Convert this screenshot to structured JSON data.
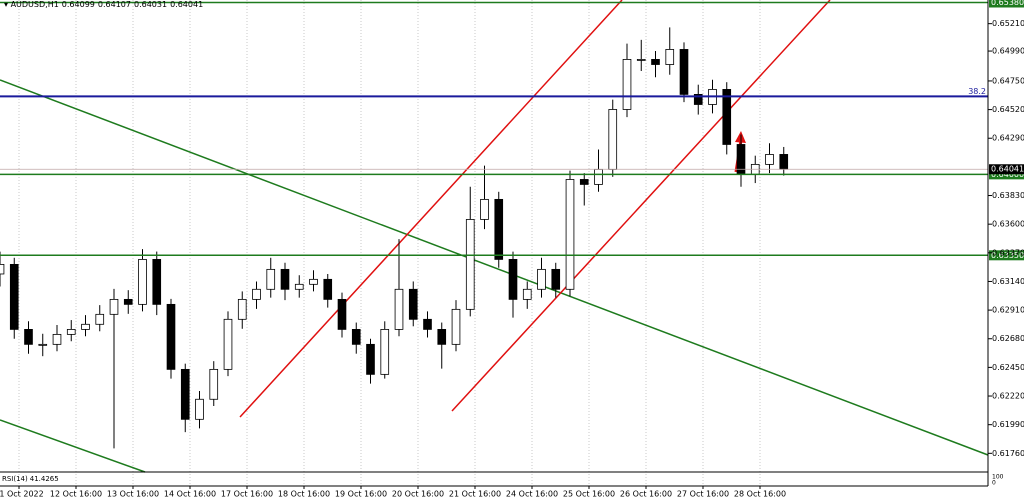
{
  "chart_data": {
    "type": "candlestick",
    "title": "AUDUSD,H1",
    "header_values": [
      {
        "value": 0.64099,
        "label": "0.64099"
      },
      {
        "value": 0.64107,
        "label": "0.64107"
      },
      {
        "value": 0.64031,
        "label": "0.64031"
      },
      {
        "value": 0.64041,
        "label": "0.64041"
      }
    ],
    "x": [
      0,
      6,
      12,
      18,
      24,
      30,
      36,
      42,
      48,
      54,
      60,
      66,
      72,
      78,
      84,
      90,
      96,
      102,
      108,
      114,
      120,
      126,
      132,
      138,
      144,
      150,
      156,
      162,
      168,
      174,
      180,
      186,
      192,
      198,
      204,
      210,
      216,
      222,
      228,
      234,
      240,
      246,
      252,
      258,
      264,
      270,
      276,
      282,
      288,
      294,
      300,
      306,
      312,
      318,
      324,
      330
    ],
    "open": [
      0.632,
      0.63277,
      0.62755,
      0.62635,
      0.62635,
      0.62715,
      0.62755,
      0.62796,
      0.62876,
      0.62996,
      0.62956,
      0.63317,
      0.62956,
      0.62434,
      0.62033,
      0.62194,
      0.62434,
      0.62836,
      0.62996,
      0.63077,
      0.63237,
      0.63077,
      0.63117,
      0.63157,
      0.62996,
      0.62755,
      0.62635,
      0.62394,
      0.62755,
      0.63077,
      0.62836,
      0.62755,
      0.62635,
      0.62916,
      0.63638,
      0.63799,
      0.63317,
      0.62996,
      0.63077,
      0.63237,
      0.63077,
      0.63959,
      0.63919,
      0.6404,
      0.64521,
      0.64923,
      0.64923,
      0.64882,
      0.65003,
      0.64642,
      0.64561,
      0.64682,
      0.6424,
      0.64,
      0.6408,
      0.6416
    ],
    "high": [
      0.6338,
      0.6333,
      0.6282,
      0.6272,
      0.6279,
      0.6283,
      0.6287,
      0.6295,
      0.6308,
      0.6307,
      0.634,
      0.6338,
      0.63,
      0.6248,
      0.6226,
      0.625,
      0.629,
      0.6306,
      0.6314,
      0.6333,
      0.6329,
      0.6319,
      0.6323,
      0.632,
      0.6305,
      0.6281,
      0.6268,
      0.6282,
      0.6348,
      0.6314,
      0.629,
      0.6281,
      0.6299,
      0.639,
      0.6407,
      0.6386,
      0.6338,
      0.6314,
      0.6333,
      0.6329,
      0.6403,
      0.6401,
      0.642,
      0.646,
      0.6505,
      0.6508,
      0.6499,
      0.6518,
      0.6506,
      0.6472,
      0.6476,
      0.6474,
      0.6432,
      0.6415,
      0.6425,
      0.6422
    ],
    "low": [
      0.631,
      0.6268,
      0.6256,
      0.6254,
      0.6258,
      0.6266,
      0.627,
      0.6274,
      0.618,
      0.6288,
      0.629,
      0.6287,
      0.6236,
      0.6193,
      0.6196,
      0.6214,
      0.6238,
      0.6276,
      0.6292,
      0.6301,
      0.6299,
      0.6301,
      0.6306,
      0.6293,
      0.6269,
      0.6256,
      0.6232,
      0.6236,
      0.627,
      0.6278,
      0.6269,
      0.6244,
      0.6258,
      0.6286,
      0.6356,
      0.6325,
      0.6285,
      0.6292,
      0.6301,
      0.6301,
      0.6302,
      0.6375,
      0.6386,
      0.6398,
      0.6446,
      0.6483,
      0.6478,
      0.648,
      0.6458,
      0.6448,
      0.6449,
      0.6416,
      0.639,
      0.6393,
      0.6401,
      0.6399
    ],
    "close": [
      0.63277,
      0.62755,
      0.62635,
      0.62635,
      0.62715,
      0.62755,
      0.62796,
      0.62876,
      0.62996,
      0.62956,
      0.63317,
      0.62956,
      0.62434,
      0.62033,
      0.62194,
      0.62434,
      0.62836,
      0.62996,
      0.63077,
      0.63237,
      0.63077,
      0.63117,
      0.63157,
      0.62996,
      0.62755,
      0.62635,
      0.62394,
      0.62755,
      0.63077,
      0.62836,
      0.62755,
      0.62635,
      0.62916,
      0.63638,
      0.63799,
      0.63317,
      0.62996,
      0.63077,
      0.63237,
      0.63077,
      0.63959,
      0.63919,
      0.6404,
      0.64521,
      0.64923,
      0.64923,
      0.64882,
      0.65003,
      0.64642,
      0.64561,
      0.64682,
      0.6424,
      0.64,
      0.6408,
      0.6416,
      0.64041
    ],
    "xlim": [
      0,
      416
    ],
    "xticks": [
      {
        "value": 8,
        "label": "11 Oct 2022"
      },
      {
        "value": 32,
        "label": "12 Oct 16:00"
      },
      {
        "value": 56,
        "label": "13 Oct 16:00"
      },
      {
        "value": 80,
        "label": "14 Oct 16:00"
      },
      {
        "value": 104,
        "label": "17 Oct 16:00"
      },
      {
        "value": 128,
        "label": "18 Oct 16:00"
      },
      {
        "value": 152,
        "label": "19 Oct 16:00"
      },
      {
        "value": 176,
        "label": "20 Oct 16:00"
      },
      {
        "value": 200,
        "label": "21 Oct 16:00"
      },
      {
        "value": 224,
        "label": "24 Oct 16:00"
      },
      {
        "value": 248,
        "label": "25 Oct 16:00"
      },
      {
        "value": 272,
        "label": "26 Oct 16:00"
      },
      {
        "value": 296,
        "label": "27 Oct 16:00"
      },
      {
        "value": 320,
        "label": "28 Oct 16:00"
      }
    ],
    "ylim": [
      0.6161,
      0.654
    ],
    "yticks": [
      {
        "value": 0.6521,
        "label": "0.65210"
      },
      {
        "value": 0.6499,
        "label": "0.64990"
      },
      {
        "value": 0.6475,
        "label": "0.64750"
      },
      {
        "value": 0.6452,
        "label": "0.64520"
      },
      {
        "value": 0.6429,
        "label": "0.64290"
      },
      {
        "value": 0.6383,
        "label": "0.63830"
      },
      {
        "value": 0.636,
        "label": "0.63600"
      },
      {
        "value": 0.6337,
        "label": "0.63370"
      },
      {
        "value": 0.6314,
        "label": "0.63140"
      },
      {
        "value": 0.6291,
        "label": "0.62910"
      },
      {
        "value": 0.6268,
        "label": "0.62680"
      },
      {
        "value": 0.6245,
        "label": "0.62450"
      },
      {
        "value": 0.6222,
        "label": "0.62220"
      },
      {
        "value": 0.6199,
        "label": "0.61990"
      },
      {
        "value": 0.6176,
        "label": "0.61760"
      }
    ],
    "levels": [
      {
        "value": 0.6538,
        "label": "0.65380",
        "color": "#1e7b1e"
      },
      {
        "value": 0.64,
        "label": "0.64000",
        "color": "#1e7b1e"
      },
      {
        "value": 0.6335,
        "label": "0.63350",
        "color": "#1e7b1e"
      }
    ],
    "fib_level": {
      "value": 0.64626,
      "label": "38.2",
      "color": "#1a1a9c"
    },
    "last_price": {
      "value": 0.64041,
      "label": "0.64041"
    },
    "indicator": {
      "name": "RSI(14)",
      "value": 41.4265,
      "ticks": [
        100,
        0
      ]
    },
    "bull_color": "#ffffff",
    "bear_color": "#000000",
    "grid": true
  }
}
